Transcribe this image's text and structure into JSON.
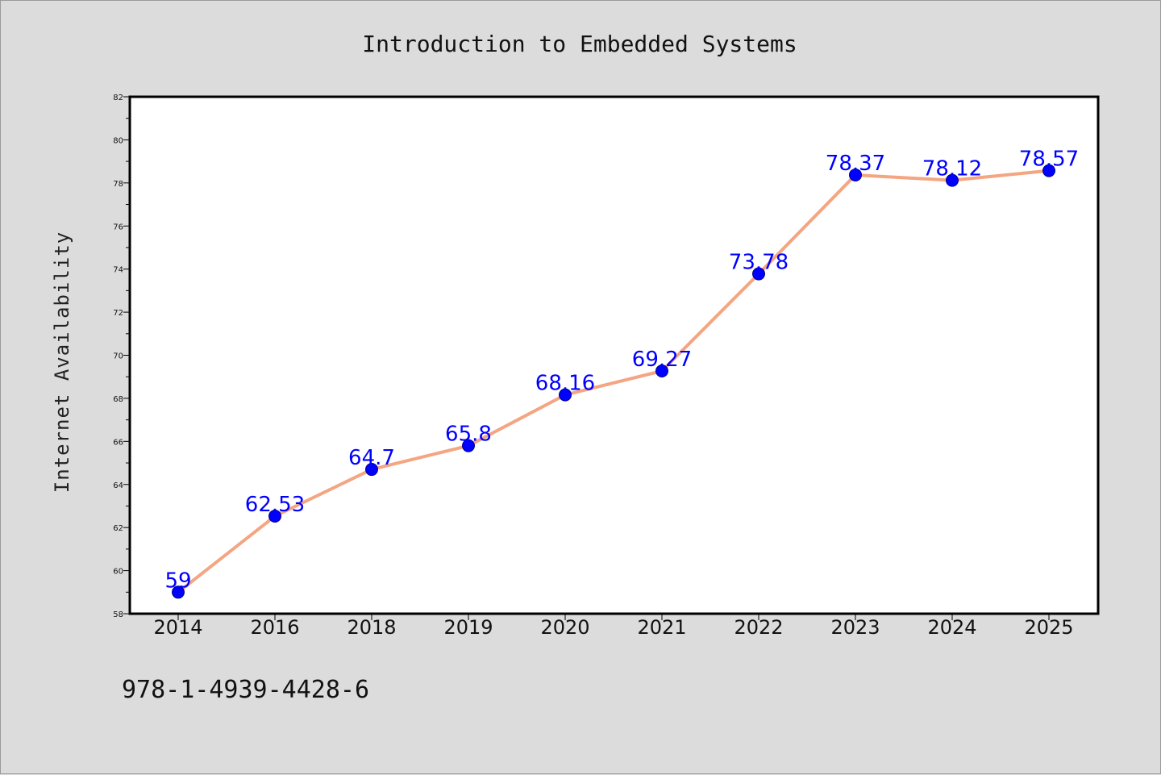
{
  "chart_data": {
    "type": "line",
    "title": "Introduction to Embedded Systems",
    "xlabel": "",
    "ylabel": "Internet Availability",
    "categories": [
      "2014",
      "2016",
      "2018",
      "2019",
      "2020",
      "2021",
      "2022",
      "2023",
      "2024",
      "2025"
    ],
    "series": [
      {
        "values": [
          59,
          62.53,
          64.7,
          65.8,
          68.16,
          69.27,
          73.78,
          78.37,
          78.12,
          78.57
        ],
        "labels": [
          "59",
          "62.53",
          "64.7",
          "65.8",
          "68.16",
          "69.27",
          "73.78",
          "78.37",
          "78.12",
          "78.57"
        ]
      }
    ],
    "ylim": [
      58,
      82
    ],
    "yticks": [
      58,
      60,
      62,
      64,
      66,
      68,
      70,
      72,
      74,
      76,
      78,
      80,
      82
    ],
    "grid": false,
    "legend": "none",
    "colors": {
      "line": "#f4a582",
      "marker": "#0000ff",
      "marker_edge": "#00008b",
      "label": "#0000ff",
      "background": "#dcdcdc",
      "plot_background": "#ffffff"
    }
  },
  "footer": {
    "text": "978-1-4939-4428-6"
  }
}
